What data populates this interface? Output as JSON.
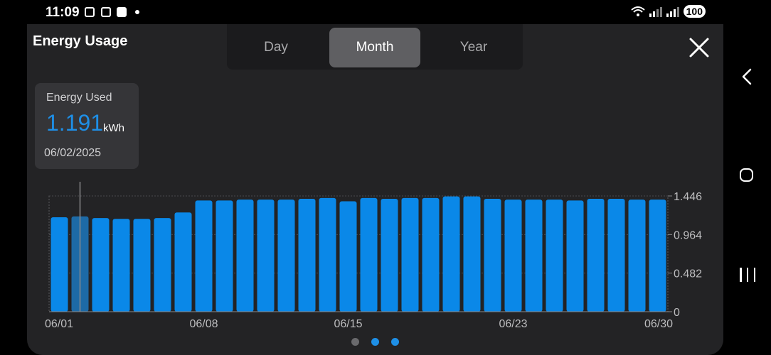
{
  "status_bar": {
    "time": "11:09",
    "battery": "100"
  },
  "header": {
    "title": "Energy Usage"
  },
  "tabs": [
    {
      "label": "Day",
      "active": false
    },
    {
      "label": "Month",
      "active": true
    },
    {
      "label": "Year",
      "active": false
    }
  ],
  "tooltip": {
    "label": "Energy Used",
    "value": "1.191",
    "unit": "kWh",
    "date": "06/02/2025"
  },
  "pager": {
    "count": 3,
    "active_color": "#1e8fe6",
    "inactive_color": "#6a6a6d"
  },
  "colors": {
    "bar": "#0a88e8",
    "bar_selected": "#1d6aa6",
    "panel": "#232325"
  },
  "chart_data": {
    "type": "bar",
    "categories": [
      "06/01",
      "06/02",
      "06/03",
      "06/04",
      "06/05",
      "06/06",
      "06/07",
      "06/08",
      "06/09",
      "06/10",
      "06/11",
      "06/12",
      "06/13",
      "06/14",
      "06/15",
      "06/16",
      "06/17",
      "06/18",
      "06/19",
      "06/20",
      "06/21",
      "06/22",
      "06/23",
      "06/24",
      "06/25",
      "06/26",
      "06/27",
      "06/28",
      "06/29",
      "06/30"
    ],
    "values": [
      1.18,
      1.191,
      1.17,
      1.16,
      1.16,
      1.17,
      1.24,
      1.39,
      1.39,
      1.4,
      1.4,
      1.4,
      1.41,
      1.42,
      1.38,
      1.42,
      1.41,
      1.42,
      1.42,
      1.44,
      1.44,
      1.41,
      1.4,
      1.4,
      1.4,
      1.39,
      1.41,
      1.41,
      1.4,
      1.4
    ],
    "selected_index": 1,
    "x_tick_labels": [
      "06/01",
      "06/08",
      "06/15",
      "06/23",
      "06/30"
    ],
    "x_tick_indices": [
      0,
      7,
      14,
      22,
      29
    ],
    "y_tick_labels": [
      "1.446",
      "0.964",
      "0.482",
      "0"
    ],
    "y_ticks": [
      1.446,
      0.964,
      0.482,
      0
    ],
    "ylim": [
      0,
      1.446
    ],
    "grid": true,
    "title": "",
    "xlabel": "",
    "ylabel": ""
  }
}
